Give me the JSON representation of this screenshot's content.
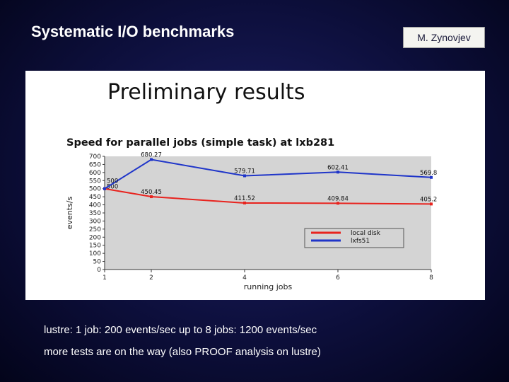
{
  "slide": {
    "title": "Systematic I/O benchmarks",
    "author": "M. Zynovjev"
  },
  "figure": {
    "heading": "Preliminary results"
  },
  "chart_data": {
    "type": "line",
    "title": "Speed for parallel jobs (simple task) at lxb281",
    "xlabel": "running jobs",
    "ylabel": "events/s",
    "x": [
      1,
      2,
      4,
      6,
      8
    ],
    "xticks": [
      "1",
      "2",
      "4",
      "6",
      "8"
    ],
    "xlim": [
      1,
      8
    ],
    "ylim": [
      0,
      700
    ],
    "yticks": [
      0,
      50,
      100,
      150,
      200,
      250,
      300,
      350,
      400,
      450,
      500,
      550,
      600,
      650,
      700
    ],
    "grid": false,
    "legend": "bottom-right",
    "series": [
      {
        "name": "local disk",
        "color": "#e8231e",
        "values": [
          500,
          450.45,
          411.52,
          409.84,
          405.2
        ],
        "labels": [
          "500",
          "450.45",
          "411.52",
          "409.84",
          "405.2"
        ]
      },
      {
        "name": "lxfs51",
        "color": "#1f35c9",
        "values": [
          500,
          680.27,
          579.71,
          602.41,
          569.8
        ],
        "labels": [
          "500",
          "680.27",
          "579.71",
          "602.41",
          "569.8"
        ]
      }
    ]
  },
  "bullets": [
    "lustre: 1 job: 200 events/sec up to 8 jobs: 1200 events/sec",
    "more tests are on the way (also PROOF analysis on lustre)"
  ]
}
